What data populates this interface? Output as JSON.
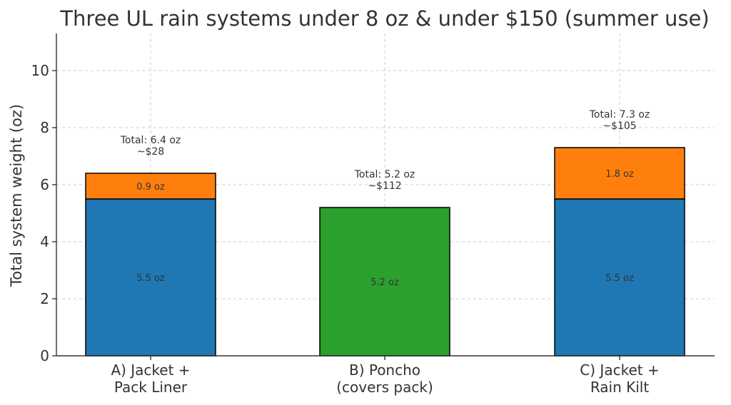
{
  "chart_data": {
    "type": "bar",
    "stacked": true,
    "title": "Three UL rain systems under 8 oz & under $150 (summer use)",
    "xlabel": "",
    "ylabel": "Total system weight (oz)",
    "ylim": [
      0,
      11.3
    ],
    "yticks": [
      0,
      2,
      4,
      6,
      8,
      10
    ],
    "grid": true,
    "categories": [
      {
        "lines": [
          "A) Jacket +",
          "Pack Liner"
        ]
      },
      {
        "lines": [
          "B) Poncho",
          "(covers pack)"
        ]
      },
      {
        "lines": [
          "C) Jacket +",
          "Rain Kilt"
        ]
      }
    ],
    "bars": [
      {
        "segments": [
          {
            "value": 5.5,
            "label": "5.5 oz",
            "color": "#1f77b4"
          },
          {
            "value": 0.9,
            "label": "0.9 oz",
            "color": "#ff7f0e"
          }
        ],
        "total_lines": [
          "Total: 6.4 oz",
          "~$28"
        ]
      },
      {
        "segments": [
          {
            "value": 5.2,
            "label": "5.2 oz",
            "color": "#2ca02c"
          }
        ],
        "total_lines": [
          "Total: 5.2 oz",
          "~$112"
        ]
      },
      {
        "segments": [
          {
            "value": 5.5,
            "label": "5.5 oz",
            "color": "#1f77b4"
          },
          {
            "value": 1.8,
            "label": "1.8 oz",
            "color": "#ff7f0e"
          }
        ],
        "total_lines": [
          "Total: 7.3 oz",
          "~$105"
        ]
      }
    ]
  }
}
